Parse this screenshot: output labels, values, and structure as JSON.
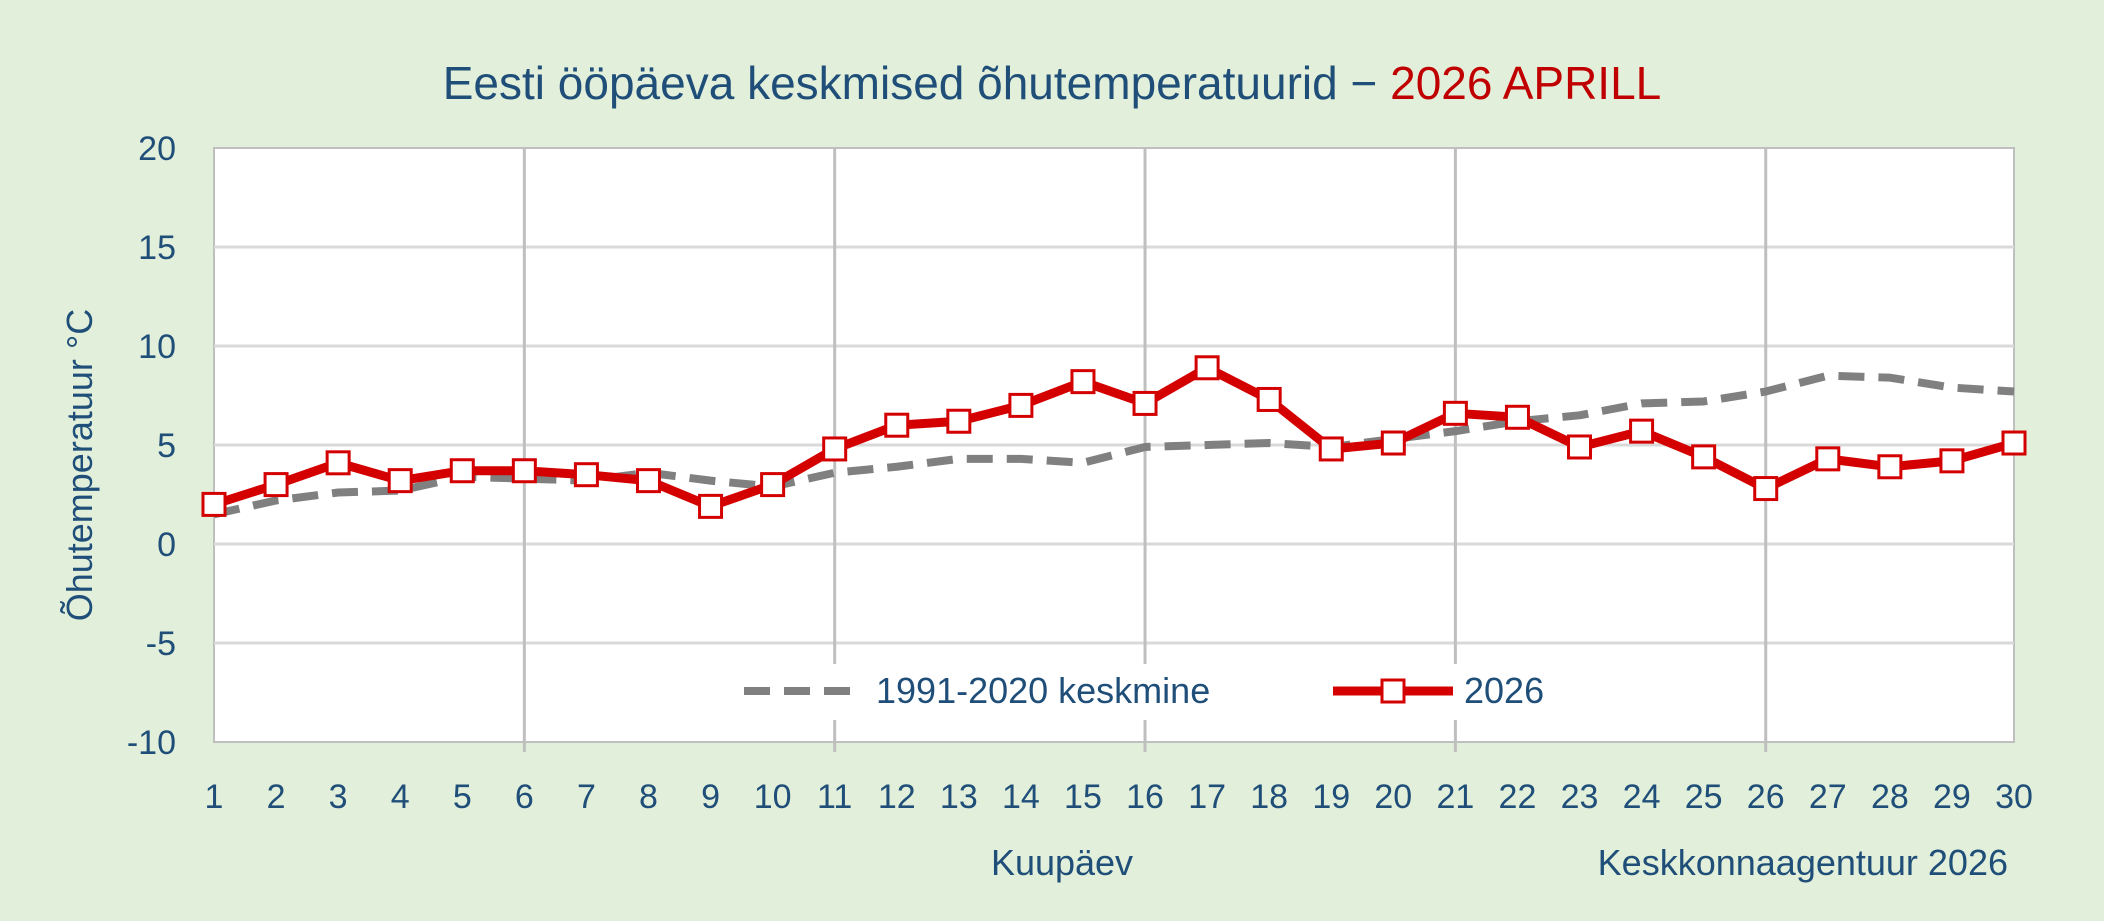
{
  "chart_data": {
    "type": "line",
    "title": "Eesti ööpäeva keskmised õhutemperatuurid − ",
    "title_highlight": "2026 APRILL",
    "xlabel": "Kuupäev",
    "ylabel": "Õhutemperatuur °C",
    "credit": "Keskkonnaagentuur 2026",
    "x": [
      1,
      2,
      3,
      4,
      5,
      6,
      7,
      8,
      9,
      10,
      11,
      12,
      13,
      14,
      15,
      16,
      17,
      18,
      19,
      20,
      21,
      22,
      23,
      24,
      25,
      26,
      27,
      28,
      29,
      30
    ],
    "xlim": [
      1,
      30
    ],
    "ylim": [
      -10,
      20
    ],
    "y_ticks": [
      -10,
      -5,
      0,
      5,
      10,
      15,
      20
    ],
    "vertical_grid_at": [
      6,
      11,
      16,
      21,
      26
    ],
    "grid": true,
    "legend_position": "bottom-center",
    "series": [
      {
        "name": "1991-2020 keskmine",
        "style": "dashed",
        "color": "#808080",
        "values": [
          1.5,
          2.2,
          2.6,
          2.7,
          3.4,
          3.3,
          3.2,
          3.6,
          3.2,
          2.9,
          3.6,
          3.9,
          4.3,
          4.3,
          4.1,
          4.9,
          5.0,
          5.1,
          4.9,
          5.3,
          5.7,
          6.2,
          6.5,
          7.1,
          7.2,
          7.7,
          8.5,
          8.4,
          7.9,
          7.7
        ]
      },
      {
        "name": "2026",
        "style": "solid-square-markers",
        "color": "#d40000",
        "values": [
          2.0,
          3.0,
          4.1,
          3.2,
          3.7,
          3.7,
          3.5,
          3.2,
          1.9,
          3.0,
          4.8,
          6.0,
          6.2,
          7.0,
          8.2,
          7.1,
          8.9,
          7.3,
          4.8,
          5.1,
          6.6,
          6.4,
          4.9,
          5.7,
          4.4,
          2.8,
          4.3,
          3.9,
          4.2,
          5.1
        ]
      }
    ]
  }
}
